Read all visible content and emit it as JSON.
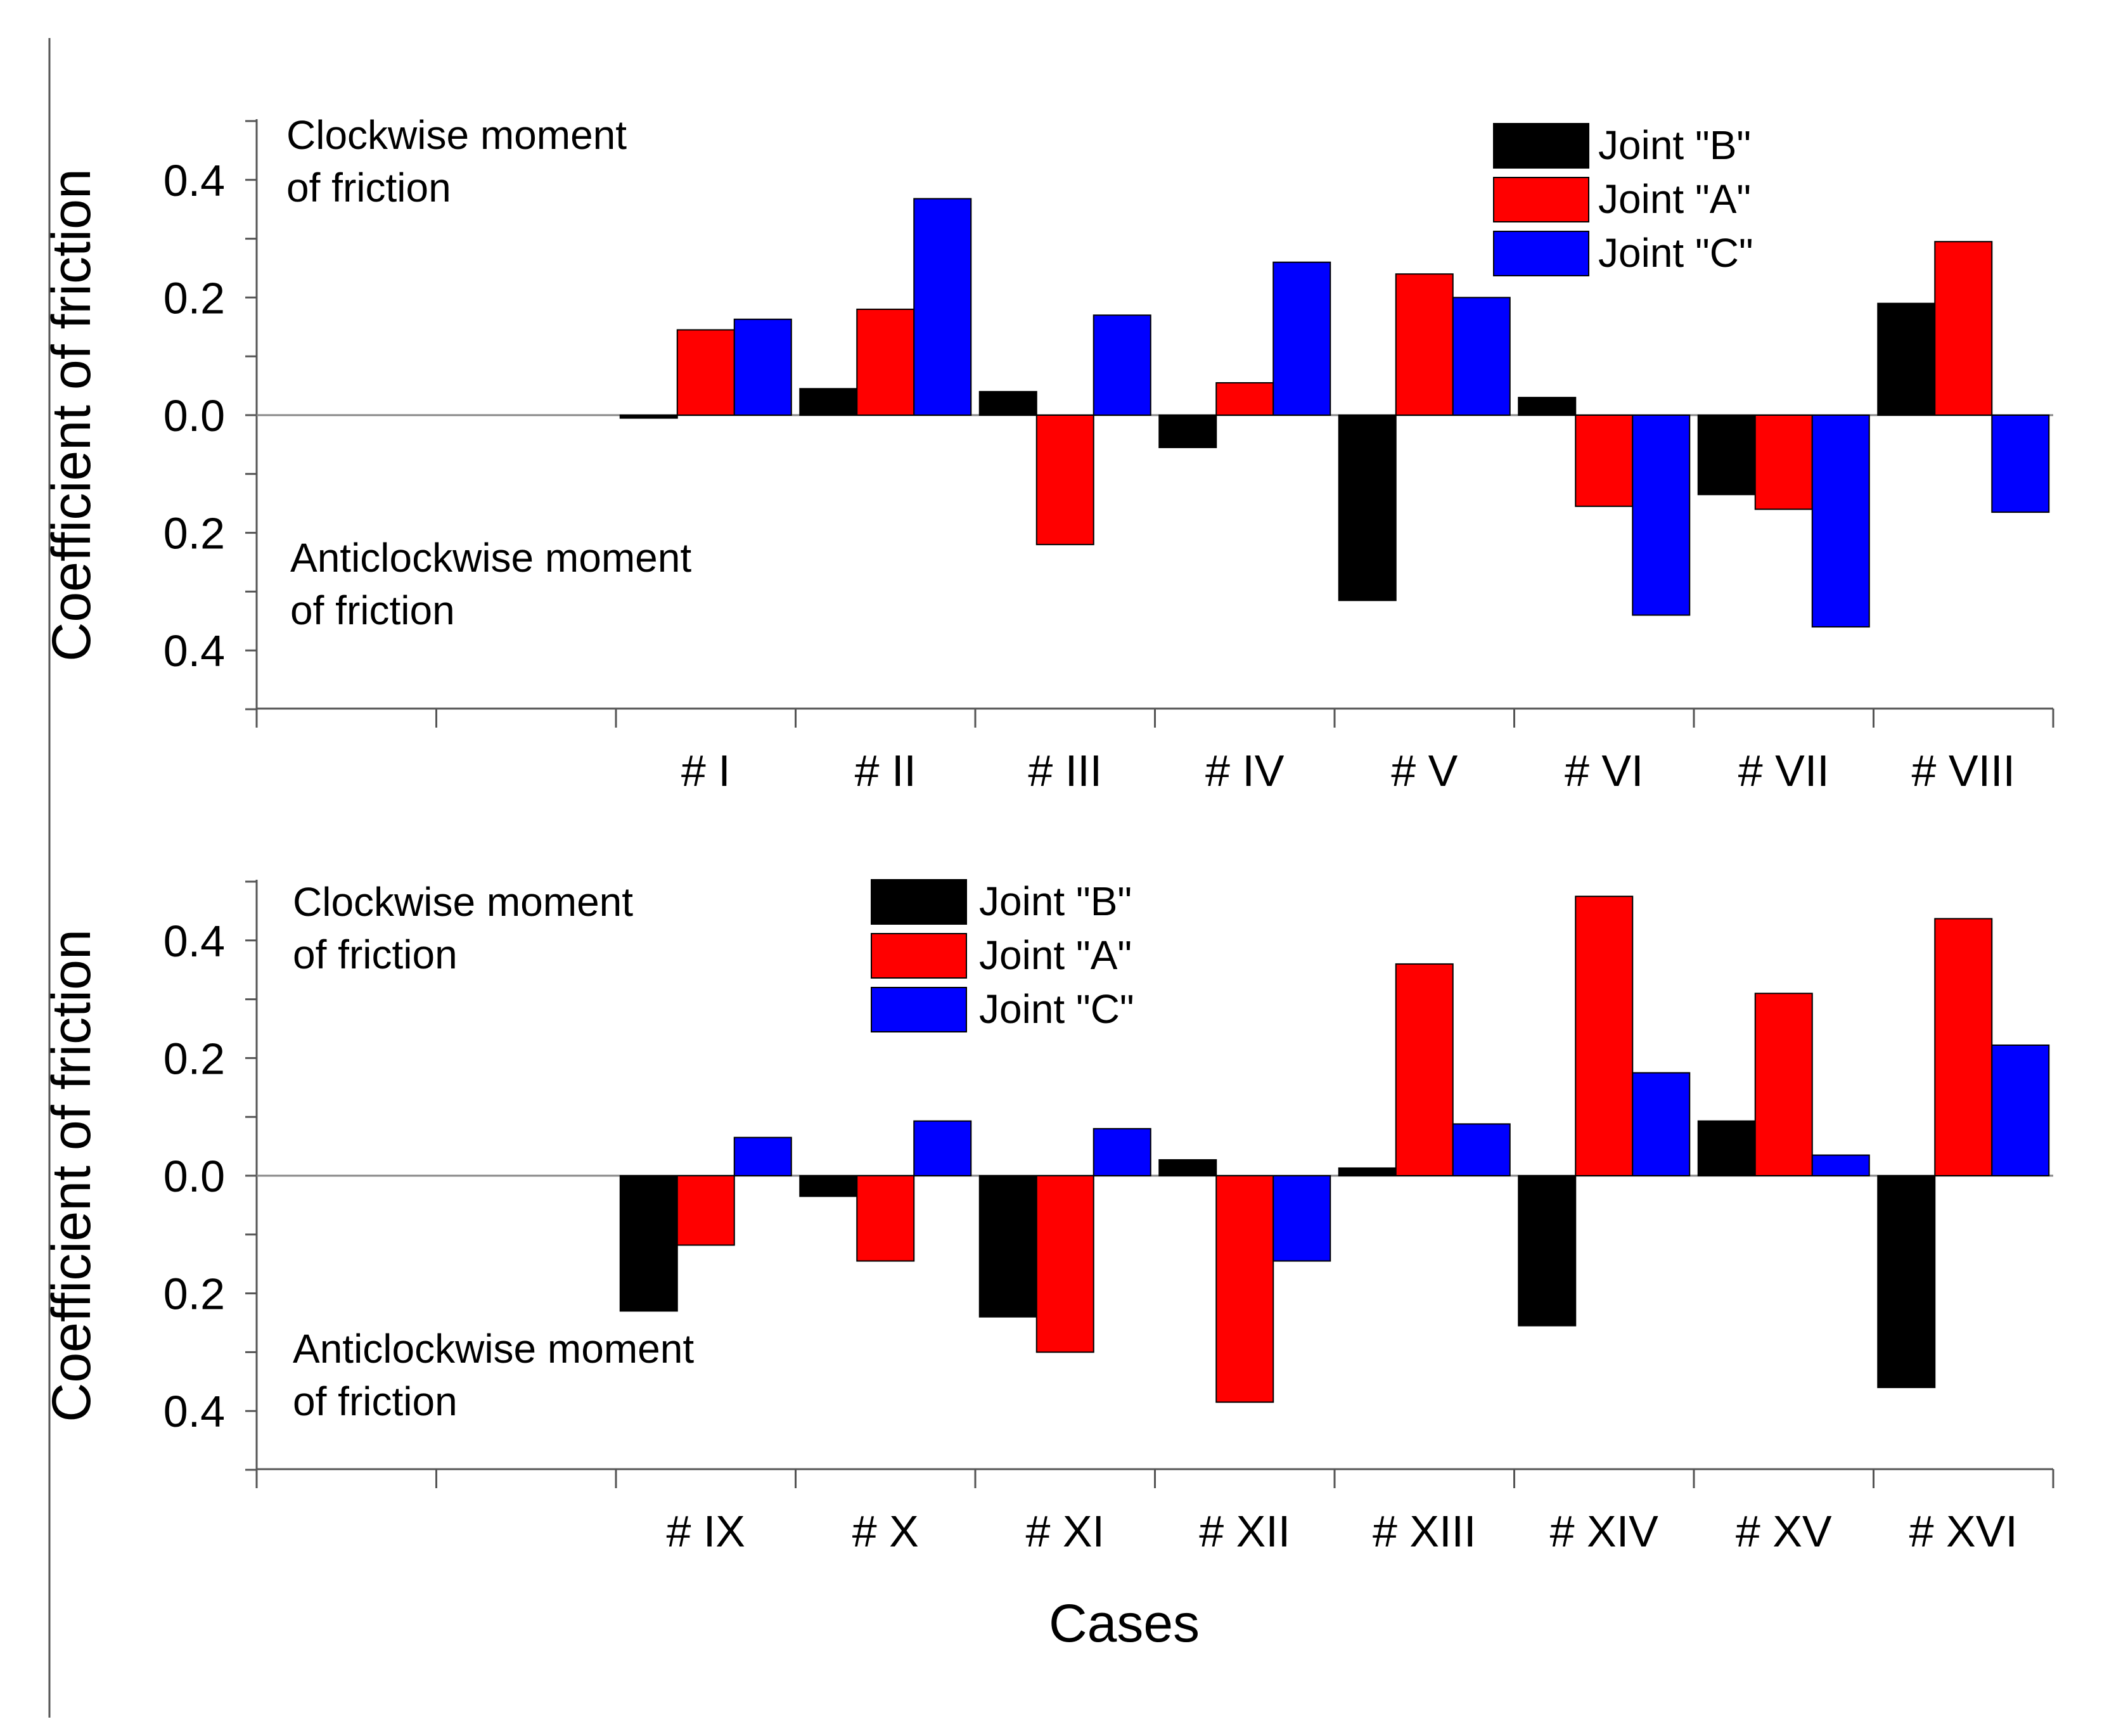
{
  "figure": {
    "xlabel": "Cases"
  },
  "chart_data": [
    {
      "type": "bar",
      "title": "",
      "xlabel": "",
      "ylabel": "Coefficient of friction",
      "ylim": [
        -0.5,
        0.5
      ],
      "yticks": [
        -0.4,
        -0.2,
        0.0,
        0.2,
        0.4
      ],
      "ytick_labels": [
        "0.4",
        "0.2",
        "0.0",
        "0.2",
        "0.4"
      ],
      "categories": [
        "# I",
        "# II",
        "# III",
        "# IV",
        "# V",
        "# VI",
        "# VII",
        "# VIII"
      ],
      "series": [
        {
          "name": "Joint \"B\"",
          "color": "#000000",
          "values": [
            -0.005,
            0.045,
            0.04,
            -0.055,
            -0.315,
            0.03,
            -0.135,
            0.19
          ]
        },
        {
          "name": "Joint \"A\"",
          "color": "#ff0000",
          "values": [
            0.145,
            0.18,
            -0.22,
            0.055,
            0.24,
            -0.155,
            -0.16,
            0.295
          ]
        },
        {
          "name": "Joint \"C\"",
          "color": "#0000ff",
          "values": [
            0.163,
            0.368,
            0.17,
            0.26,
            0.2,
            -0.34,
            -0.36,
            -0.165
          ]
        }
      ],
      "annotations": {
        "top": [
          "Clockwise moment",
          "of friction"
        ],
        "bottom": [
          "Anticlockwise moment",
          "of friction"
        ]
      },
      "legend_position": "top-right",
      "grid": false
    },
    {
      "type": "bar",
      "title": "",
      "xlabel": "Cases",
      "ylabel": "Coefficient of friction",
      "ylim": [
        -0.5,
        0.5
      ],
      "yticks": [
        -0.4,
        -0.2,
        0.0,
        0.2,
        0.4
      ],
      "ytick_labels": [
        "0.4",
        "0.2",
        "0.0",
        "0.2",
        "0.4"
      ],
      "categories": [
        "# IX",
        "# X",
        "# XI",
        "# XII",
        "# XIII",
        "# XIV",
        "# XV",
        "# XVI"
      ],
      "series": [
        {
          "name": "Joint \"B\"",
          "color": "#000000",
          "values": [
            -0.23,
            -0.035,
            -0.24,
            0.027,
            0.013,
            -0.255,
            0.093,
            -0.36
          ]
        },
        {
          "name": "Joint \"A\"",
          "color": "#ff0000",
          "values": [
            -0.118,
            -0.145,
            -0.3,
            -0.385,
            0.36,
            0.475,
            0.31,
            0.437
          ]
        },
        {
          "name": "Joint \"C\"",
          "color": "#0000ff",
          "values": [
            0.065,
            0.093,
            0.08,
            -0.145,
            0.088,
            0.175,
            0.035,
            0.222
          ]
        }
      ],
      "annotations": {
        "top": [
          "Clockwise moment",
          "of friction"
        ],
        "bottom": [
          "Anticlockwise moment",
          "of friction"
        ]
      },
      "legend_position": "top-center",
      "grid": false
    }
  ]
}
